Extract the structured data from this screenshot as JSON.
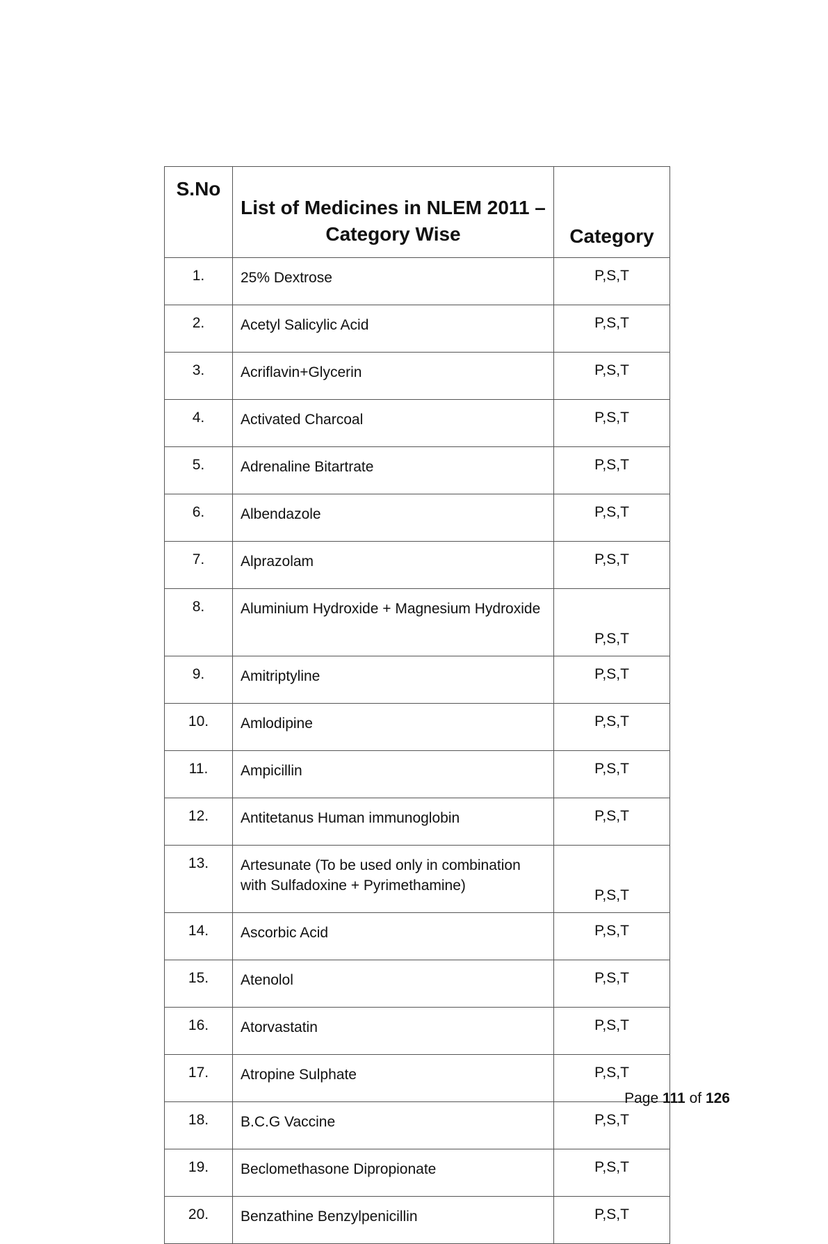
{
  "table": {
    "headers": {
      "sno": "S.No",
      "name": "List of Medicines in NLEM 2011 – Category Wise",
      "category": "Category"
    },
    "rows": [
      {
        "sno": "1.",
        "name": "25% Dextrose",
        "category": "P,S,T"
      },
      {
        "sno": "2.",
        "name": "Acetyl Salicylic Acid",
        "category": "P,S,T"
      },
      {
        "sno": "3.",
        "name": "Acriflavin+Glycerin",
        "category": "P,S,T"
      },
      {
        "sno": "4.",
        "name": "Activated Charcoal",
        "category": "P,S,T"
      },
      {
        "sno": "5.",
        "name": "Adrenaline Bitartrate",
        "category": "P,S,T"
      },
      {
        "sno": "6.",
        "name": "Albendazole",
        "category": "P,S,T"
      },
      {
        "sno": "7.",
        "name": "Alprazolam",
        "category": "P,S,T"
      },
      {
        "sno": "8.",
        "name": "Aluminium Hydroxide + Magnesium Hydroxide",
        "category": "P,S,T"
      },
      {
        "sno": "9.",
        "name": "Amitriptyline",
        "category": "P,S,T"
      },
      {
        "sno": "10.",
        "name": "Amlodipine",
        "category": "P,S,T"
      },
      {
        "sno": "11.",
        "name": "Ampicillin",
        "category": "P,S,T"
      },
      {
        "sno": "12.",
        "name": "Antitetanus Human immunoglobin",
        "category": "P,S,T"
      },
      {
        "sno": "13.",
        "name": "Artesunate (To be used only in combination with Sulfadoxine + Pyrimethamine)",
        "category": "P,S,T"
      },
      {
        "sno": "14.",
        "name": "Ascorbic Acid",
        "category": "P,S,T"
      },
      {
        "sno": "15.",
        "name": "Atenolol",
        "category": "P,S,T"
      },
      {
        "sno": "16.",
        "name": "Atorvastatin",
        "category": "P,S,T"
      },
      {
        "sno": "17.",
        "name": "Atropine Sulphate",
        "category": "P,S,T"
      },
      {
        "sno": "18.",
        "name": "B.C.G Vaccine",
        "category": "P,S,T"
      },
      {
        "sno": "19.",
        "name": "Beclomethasone Dipropionate",
        "category": "P,S,T"
      },
      {
        "sno": "20.",
        "name": "Benzathine Benzylpenicillin",
        "category": "P,S,T"
      }
    ]
  },
  "footer": {
    "page_label": "Page",
    "page_current": "111",
    "of_label": "of",
    "page_total": "126"
  }
}
